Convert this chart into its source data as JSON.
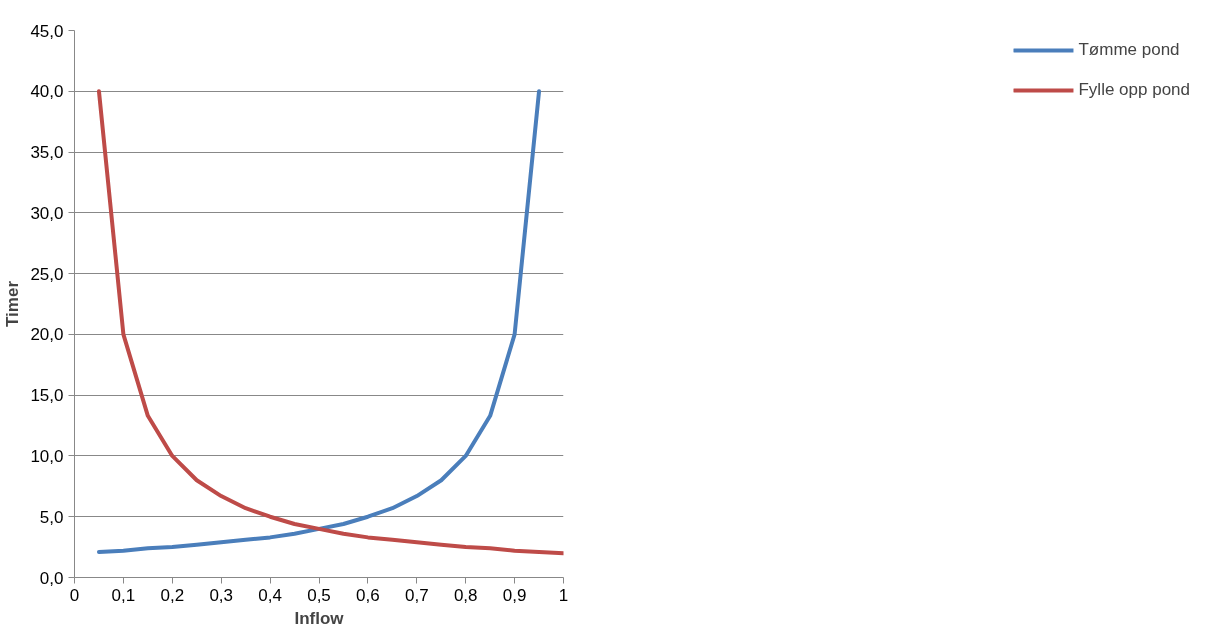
{
  "chart_data": {
    "type": "line",
    "xlabel": "Inflow",
    "ylabel": "Timer",
    "xlim": [
      0,
      1
    ],
    "ylim": [
      0,
      45
    ],
    "xticks": [
      {
        "value": 0,
        "label": "0"
      },
      {
        "value": 0.1,
        "label": "0,1"
      },
      {
        "value": 0.2,
        "label": "0,2"
      },
      {
        "value": 0.3,
        "label": "0,3"
      },
      {
        "value": 0.4,
        "label": "0,4"
      },
      {
        "value": 0.5,
        "label": "0,5"
      },
      {
        "value": 0.6,
        "label": "0,6"
      },
      {
        "value": 0.7,
        "label": "0,7"
      },
      {
        "value": 0.8,
        "label": "0,8"
      },
      {
        "value": 0.9,
        "label": "0,9"
      },
      {
        "value": 1,
        "label": "1"
      }
    ],
    "yticks": [
      {
        "value": 0,
        "label": "0,0"
      },
      {
        "value": 5,
        "label": "5,0"
      },
      {
        "value": 10,
        "label": "10,0"
      },
      {
        "value": 15,
        "label": "15,0"
      },
      {
        "value": 20,
        "label": "20,0"
      },
      {
        "value": 25,
        "label": "25,0"
      },
      {
        "value": 30,
        "label": "30,0"
      },
      {
        "value": 35,
        "label": "35,0"
      },
      {
        "value": 40,
        "label": "40,0"
      },
      {
        "value": 45,
        "label": "45,0"
      }
    ],
    "grid": "y",
    "legend": "right",
    "marker": "none",
    "line_style": "solid",
    "series": [
      {
        "name": "Tømme pond",
        "color": "#4a7ebb",
        "x": [
          0.05,
          0.1,
          0.15,
          0.2,
          0.25,
          0.3,
          0.35,
          0.4,
          0.45,
          0.5,
          0.55,
          0.6,
          0.65,
          0.7,
          0.75,
          0.8,
          0.85,
          0.9,
          0.95
        ],
        "values": [
          2.1,
          2.2,
          2.4,
          2.5,
          2.7,
          2.9,
          3.1,
          3.3,
          3.6,
          4.0,
          4.4,
          5.0,
          5.7,
          6.7,
          8.0,
          10.0,
          13.3,
          20.0,
          40.0
        ]
      },
      {
        "name": "Fylle opp pond",
        "color": "#be4b48",
        "x": [
          0.05,
          0.1,
          0.15,
          0.2,
          0.25,
          0.3,
          0.35,
          0.4,
          0.45,
          0.5,
          0.55,
          0.6,
          0.65,
          0.7,
          0.75,
          0.8,
          0.85,
          0.9,
          0.95,
          1.0
        ],
        "values": [
          40.0,
          20.0,
          13.3,
          10.0,
          8.0,
          6.7,
          5.7,
          5.0,
          4.4,
          4.0,
          3.6,
          3.3,
          3.1,
          2.9,
          2.7,
          2.5,
          2.4,
          2.2,
          2.1,
          2.0
        ]
      }
    ]
  }
}
